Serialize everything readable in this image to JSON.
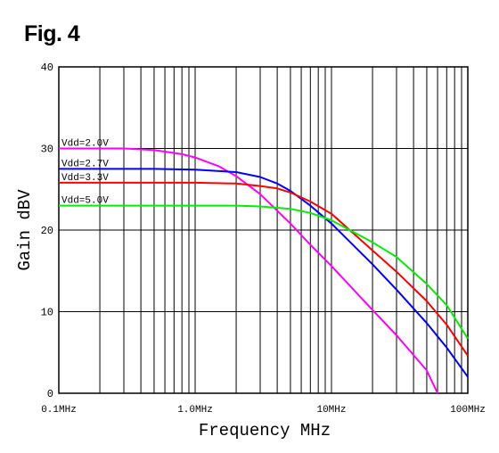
{
  "figure": {
    "label": "Fig. 4"
  },
  "chart_data": {
    "type": "line",
    "title": "",
    "xlabel": "Frequency MHz",
    "ylabel": "Gain dBV",
    "xscale": "log",
    "xlim": [
      0.1,
      100
    ],
    "ylim": [
      0,
      40
    ],
    "grid": true,
    "x_ticks": [
      0.1,
      1,
      10,
      100
    ],
    "x_tick_labels": [
      "0.1MHz",
      "1.0MHz",
      "10MHz",
      "100MHz"
    ],
    "y_ticks": [
      0,
      10,
      20,
      30,
      40
    ],
    "y_tick_labels": [
      "0",
      "10",
      "20",
      "30",
      "40"
    ],
    "series": [
      {
        "name": "Vdd=2.0V",
        "color": "#ff00ff",
        "points": [
          [
            0.1,
            30
          ],
          [
            0.3,
            30
          ],
          [
            0.5,
            29.8
          ],
          [
            0.8,
            29.3
          ],
          [
            1.0,
            28.9
          ],
          [
            1.5,
            27.8
          ],
          [
            2.0,
            26.6
          ],
          [
            3.0,
            24.4
          ],
          [
            5.0,
            20.8
          ],
          [
            7.0,
            18.2
          ],
          [
            10,
            15.6
          ],
          [
            20,
            10.2
          ],
          [
            30,
            7.1
          ],
          [
            50,
            2.8
          ],
          [
            60,
            0
          ]
        ]
      },
      {
        "name": "Vdd=2.7V",
        "color": "#0000ff",
        "points": [
          [
            0.1,
            27.5
          ],
          [
            0.5,
            27.5
          ],
          [
            1.0,
            27.4
          ],
          [
            2.0,
            27.1
          ],
          [
            3.0,
            26.5
          ],
          [
            4.0,
            25.7
          ],
          [
            5.0,
            24.8
          ],
          [
            7.0,
            23
          ],
          [
            10,
            20.8
          ],
          [
            20,
            15.8
          ],
          [
            30,
            12.7
          ],
          [
            50,
            8.6
          ],
          [
            70,
            5.6
          ],
          [
            100,
            2
          ]
        ]
      },
      {
        "name": "Vdd=3.3V",
        "color": "#ff0000",
        "points": [
          [
            0.1,
            25.8
          ],
          [
            0.5,
            25.8
          ],
          [
            1.0,
            25.8
          ],
          [
            2.0,
            25.7
          ],
          [
            3.0,
            25.4
          ],
          [
            4.0,
            25.1
          ],
          [
            5.0,
            24.6
          ],
          [
            7.0,
            23.5
          ],
          [
            10,
            22
          ],
          [
            20,
            17.5
          ],
          [
            30,
            14.9
          ],
          [
            50,
            11.3
          ],
          [
            70,
            8.4
          ],
          [
            100,
            4.6
          ]
        ]
      },
      {
        "name": "Vdd=5.0V",
        "color": "#00ee00",
        "points": [
          [
            0.1,
            23
          ],
          [
            0.5,
            23
          ],
          [
            1.0,
            23
          ],
          [
            2.0,
            23
          ],
          [
            3.0,
            22.9
          ],
          [
            5.0,
            22.6
          ],
          [
            7.0,
            22.1
          ],
          [
            10,
            21.2
          ],
          [
            20,
            18.5
          ],
          [
            30,
            16.7
          ],
          [
            50,
            13.4
          ],
          [
            70,
            10.8
          ],
          [
            100,
            6.7
          ]
        ]
      }
    ]
  }
}
